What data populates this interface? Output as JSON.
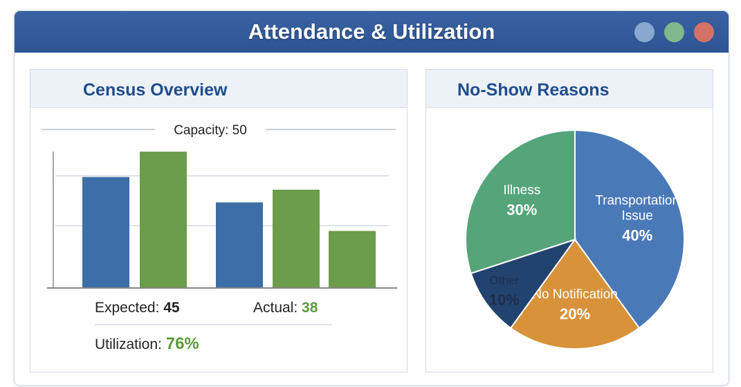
{
  "window": {
    "title": "Attendance & Utilization",
    "controls": [
      {
        "name": "minimize",
        "color": "#8aa8cf"
      },
      {
        "name": "maximize",
        "color": "#7fb88a"
      },
      {
        "name": "close",
        "color": "#d4726a"
      }
    ]
  },
  "census": {
    "title": "Census Overview",
    "expected_label": "Expected:",
    "expected_value": "45",
    "actual_label": "Actual:",
    "actual_value": "38",
    "utilization_label": "Utilization:",
    "utilization_value": "76%"
  },
  "noshow": {
    "title": "No-Show Reasons"
  },
  "chart_data": [
    {
      "type": "bar",
      "title": "Census Overview",
      "annotation": "Capacity: 50",
      "capacity": 50,
      "ylim": [
        0,
        50
      ],
      "grid": true,
      "bars": [
        {
          "value": 35,
          "color": "#3d6ea8"
        },
        {
          "value": 43,
          "color": "#6b9d4c"
        },
        {
          "value": 27,
          "color": "#3d6ea8"
        },
        {
          "value": 31,
          "color": "#6b9d4c"
        },
        {
          "value": 18,
          "color": "#6b9d4c"
        }
      ]
    },
    {
      "type": "pie",
      "title": "No-Show Reasons",
      "slices": [
        {
          "label": "Transportation Issue",
          "value": 40,
          "display": "40%",
          "color": "#4a79b8"
        },
        {
          "label": "No Notification",
          "value": 20,
          "display": "20%",
          "color": "#d7923a"
        },
        {
          "label": "Other",
          "value": 10,
          "display": "10%",
          "color": "#23436f"
        },
        {
          "label": "Illness",
          "value": 30,
          "display": "30%",
          "color": "#55a47a"
        }
      ]
    }
  ]
}
